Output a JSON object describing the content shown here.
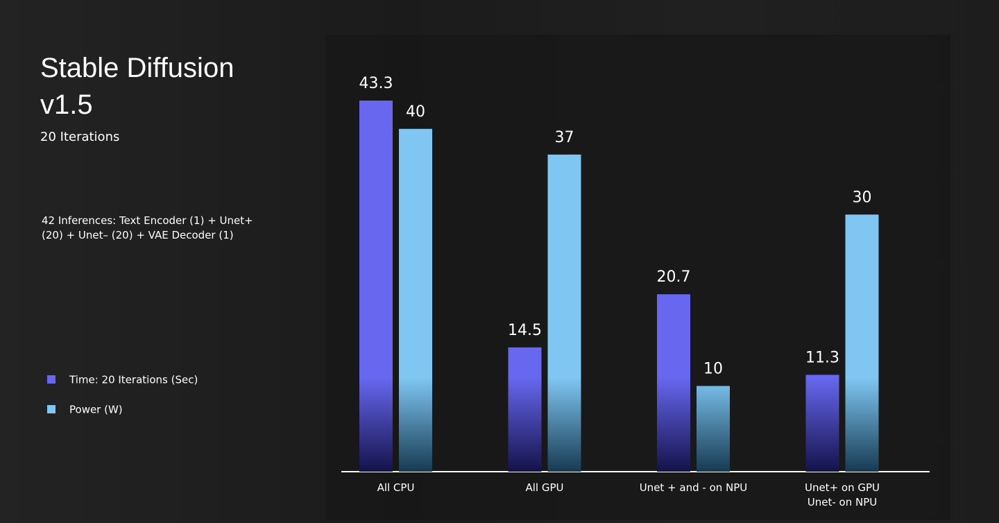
{
  "chart_data": {
    "type": "bar",
    "title": "Stable Diffusion v1.5",
    "subtitle": "20 Iterations",
    "annotation": "42 Inferences: Text Encoder (1) + Unet+ (20) + Unet– (20) + VAE Decoder (1)",
    "categories": [
      "All CPU",
      "All GPU",
      "Unet + and  - on NPU",
      "Unet+ on GPU\nUnet- on NPU"
    ],
    "series": [
      {
        "name": "Time: 20 Iterations (Sec)",
        "color": "#6767ef",
        "values": [
          43.3,
          14.5,
          20.7,
          11.3
        ]
      },
      {
        "name": "Power (W)",
        "color": "#7fc6f2",
        "values": [
          40,
          37,
          10,
          30
        ]
      }
    ],
    "legend": "left"
  }
}
